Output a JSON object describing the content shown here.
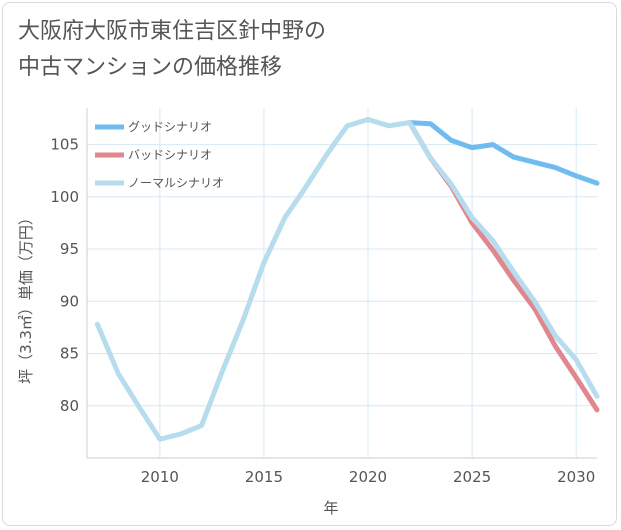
{
  "title_lines": [
    "大阪府大阪市東住吉区針中野の",
    "中古マンションの価格推移"
  ],
  "chart_data": {
    "type": "line",
    "title": "大阪府大阪市東住吉区針中野の中古マンションの価格推移",
    "xlabel": "年",
    "ylabel": "坪（3.3㎡）単価（万円）",
    "xlim": [
      2006.5,
      2031
    ],
    "ylim": [
      75,
      108.5
    ],
    "xticks": [
      2010,
      2015,
      2020,
      2025,
      2030
    ],
    "yticks": [
      80,
      85,
      90,
      95,
      100,
      105
    ],
    "grid": true,
    "legend_position": "top-left",
    "series": [
      {
        "name": "グッドシナリオ",
        "color": "#6fbcf0",
        "x": [
          2022,
          2023,
          2024,
          2025,
          2026,
          2027,
          2028,
          2029,
          2030,
          2031
        ],
        "y": [
          107.1,
          107.0,
          105.4,
          104.7,
          105.0,
          103.8,
          103.3,
          102.8,
          102.0,
          101.3
        ]
      },
      {
        "name": "バッドシナリオ",
        "color": "#e0868e",
        "x": [
          2022,
          2023,
          2024,
          2025,
          2026,
          2027,
          2028,
          2029,
          2030,
          2031
        ],
        "y": [
          107.1,
          103.7,
          101.0,
          97.5,
          94.9,
          92.0,
          89.3,
          85.7,
          82.7,
          79.6
        ]
      },
      {
        "name": "ノーマルシナリオ",
        "color": "#b6dcee",
        "x": [
          2007,
          2008,
          2009,
          2010,
          2011,
          2012,
          2013,
          2014,
          2015,
          2016,
          2017,
          2018,
          2019,
          2020,
          2021,
          2022,
          2023,
          2024,
          2025,
          2026,
          2027,
          2028,
          2029,
          2030,
          2031
        ],
        "y": [
          87.8,
          83.1,
          79.9,
          76.8,
          77.3,
          78.1,
          83.3,
          88.2,
          93.7,
          98.0,
          100.9,
          104.0,
          106.8,
          107.4,
          106.8,
          107.1,
          103.7,
          101.2,
          98.0,
          95.8,
          92.8,
          90.0,
          86.7,
          84.4,
          80.9
        ]
      }
    ]
  }
}
